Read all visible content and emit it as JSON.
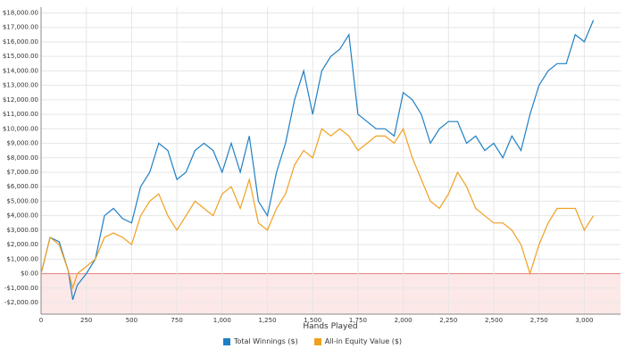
{
  "chart_data": {
    "type": "line",
    "x_label": "Hands Played",
    "x": [
      0,
      50,
      100,
      150,
      175,
      200,
      250,
      300,
      350,
      400,
      450,
      500,
      550,
      600,
      650,
      700,
      750,
      800,
      850,
      900,
      950,
      1000,
      1050,
      1100,
      1150,
      1200,
      1250,
      1300,
      1350,
      1400,
      1450,
      1500,
      1550,
      1600,
      1650,
      1700,
      1750,
      1800,
      1850,
      1900,
      1950,
      2000,
      2050,
      2100,
      2150,
      2200,
      2250,
      2300,
      2350,
      2400,
      2450,
      2500,
      2550,
      2600,
      2650,
      2700,
      2750,
      2800,
      2850,
      2900,
      2950,
      3000,
      3050
    ],
    "series": [
      {
        "name": "Total Winnings ($)",
        "color": "#1f7fc4",
        "values": [
          0,
          2500,
          2200,
          200,
          -1800,
          -800,
          0,
          1000,
          4000,
          4500,
          3800,
          3500,
          6000,
          7000,
          9000,
          8500,
          6500,
          7000,
          8500,
          9000,
          8500,
          7000,
          9000,
          7000,
          9500,
          5000,
          4000,
          7000,
          9000,
          12000,
          14000,
          11000,
          14000,
          15000,
          15500,
          16500,
          11000,
          10500,
          10000,
          10000,
          9500,
          12500,
          12000,
          11000,
          9000,
          10000,
          10500,
          10500,
          9000,
          9500,
          8500,
          9000,
          8000,
          9500,
          8500,
          11000,
          13000,
          14000,
          14500,
          14500,
          16500,
          16000,
          17500
        ]
      },
      {
        "name": "All-in Equity Value ($)",
        "color": "#f0a020",
        "values": [
          0,
          2500,
          2000,
          200,
          -1000,
          0,
          500,
          1000,
          2500,
          2800,
          2500,
          2000,
          4000,
          5000,
          5500,
          4000,
          3000,
          4000,
          5000,
          4500,
          4000,
          5500,
          6000,
          4500,
          6500,
          3500,
          3000,
          4500,
          5500,
          7500,
          8500,
          8000,
          10000,
          9500,
          10000,
          9500,
          8500,
          9000,
          9500,
          9500,
          9000,
          10000,
          8000,
          6500,
          5000,
          4500,
          5500,
          7000,
          6000,
          4500,
          4000,
          3500,
          3500,
          3000,
          2000,
          0,
          2000,
          3500,
          4500,
          4500,
          4500,
          3000,
          4000
        ]
      }
    ],
    "xlim": [
      0,
      3200
    ],
    "ylim": [
      -2800,
      18400
    ],
    "xticks": [
      0,
      250,
      500,
      750,
      {
        "value": 1000,
        "label": "1,000"
      },
      {
        "value": 1250,
        "label": "1,250"
      },
      {
        "value": 1500,
        "label": "1,500"
      },
      {
        "value": 1750,
        "label": "1,750"
      },
      {
        "value": 2000,
        "label": "2,000"
      },
      {
        "value": 2250,
        "label": "2,250"
      },
      {
        "value": 2500,
        "label": "2,500"
      },
      {
        "value": 2750,
        "label": "2,750"
      },
      {
        "value": 3000,
        "label": "3,000"
      }
    ],
    "yticks": [
      {
        "value": -2000,
        "label": "-$2,000.00"
      },
      {
        "value": -1000,
        "label": "-$1,000.00"
      },
      {
        "value": 0,
        "label": "$0.00"
      },
      {
        "value": 1000,
        "label": "$1,000.00"
      },
      {
        "value": 2000,
        "label": "$2,000.00"
      },
      {
        "value": 3000,
        "label": "$3,000.00"
      },
      {
        "value": 4000,
        "label": "$4,000.00"
      },
      {
        "value": 5000,
        "label": "$5,000.00"
      },
      {
        "value": 6000,
        "label": "$6,000.00"
      },
      {
        "value": 7000,
        "label": "$7,000.00"
      },
      {
        "value": 8000,
        "label": "$8,000.00"
      },
      {
        "value": 9000,
        "label": "$9,000.00"
      },
      {
        "value": 10000,
        "label": "$10,000.00"
      },
      {
        "value": 11000,
        "label": "$11,000.00"
      },
      {
        "value": 12000,
        "label": "$12,000.00"
      },
      {
        "value": 13000,
        "label": "$13,000.00"
      },
      {
        "value": 14000,
        "label": "$14,000.00"
      },
      {
        "value": 15000,
        "label": "$15,000.00"
      },
      {
        "value": 16000,
        "label": "$16,000.00"
      },
      {
        "value": 17000,
        "label": "$17,000.00"
      },
      {
        "value": 18000,
        "label": "$18,000.00"
      }
    ],
    "grid": true,
    "negative_region_color": "#fde8e8",
    "legend": "bottom"
  }
}
